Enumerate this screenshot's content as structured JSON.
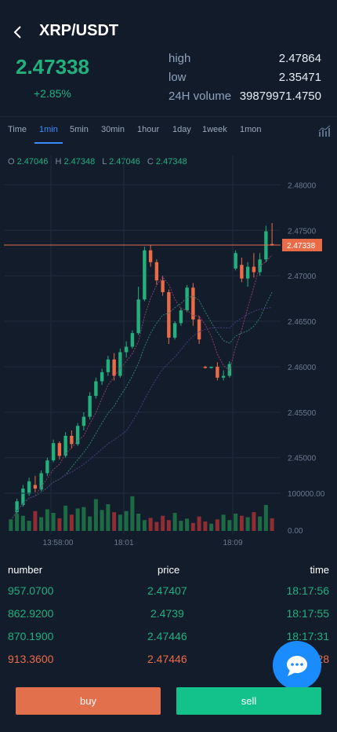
{
  "header": {
    "pair": "XRP/USDT",
    "price": "2.47338",
    "change": "+2.85%",
    "stats": [
      {
        "label": "high",
        "value": "2.47864"
      },
      {
        "label": "low",
        "value": "2.35471"
      },
      {
        "label": "24H volume",
        "value": "39879971.4750"
      }
    ]
  },
  "tabs": [
    "Time",
    "1min",
    "5min",
    "30min",
    "1hour",
    "1day",
    "1week",
    "1mon"
  ],
  "active_tab": "1min",
  "ohlc": {
    "o_label": "O",
    "o": "2.47046",
    "h_label": "H",
    "h": "2.47348",
    "l_label": "L",
    "l": "2.47046",
    "c_label": "C",
    "c": "2.47348"
  },
  "chart_data": {
    "type": "candlestick",
    "y_ticks": [
      "2.48000",
      "2.47500",
      "2.47000",
      "2.46500",
      "2.46000",
      "2.45500",
      "2.45000"
    ],
    "ylim": [
      2.4435,
      2.4815
    ],
    "current_price_label": "2.47338",
    "current_price": 2.47338,
    "volume_ticks": [
      "100000.00",
      "0.00"
    ],
    "x_labels": [
      "13:58:00",
      "18:01",
      "18:09"
    ],
    "candles": [
      [
        2.443,
        2.4432,
        2.4428,
        2.4431
      ],
      [
        2.444,
        2.4455,
        2.4436,
        2.4452
      ],
      [
        2.4448,
        2.447,
        2.4446,
        2.4466
      ],
      [
        2.446,
        2.4478,
        2.4458,
        2.4474
      ],
      [
        2.447,
        2.448,
        2.4462,
        2.4466
      ],
      [
        2.4465,
        2.4486,
        2.4463,
        2.4483
      ],
      [
        2.4483,
        2.45,
        2.448,
        2.4497
      ],
      [
        2.4497,
        2.452,
        2.4495,
        2.4516
      ],
      [
        2.4516,
        2.4518,
        2.4498,
        2.4502
      ],
      [
        2.4502,
        2.4528,
        2.45,
        2.4524
      ],
      [
        2.4524,
        2.453,
        2.451,
        2.4515
      ],
      [
        2.4515,
        2.4538,
        2.4513,
        2.4535
      ],
      [
        2.4535,
        2.455,
        2.453,
        2.4545
      ],
      [
        2.4545,
        2.4572,
        2.4542,
        2.4568
      ],
      [
        2.4568,
        2.4588,
        2.4565,
        2.4584
      ],
      [
        2.4584,
        2.4598,
        2.458,
        2.4594
      ],
      [
        2.4594,
        2.4612,
        2.459,
        2.4608
      ],
      [
        2.4608,
        2.4615,
        2.4585,
        2.459
      ],
      [
        2.459,
        2.462,
        2.4588,
        2.4616
      ],
      [
        2.4616,
        2.4628,
        2.461,
        2.4622
      ],
      [
        2.4622,
        2.464,
        2.462,
        2.4637
      ],
      [
        2.4637,
        2.4688,
        2.4635,
        2.4674
      ],
      [
        2.4674,
        2.4732,
        2.4672,
        2.4728
      ],
      [
        2.4728,
        2.4734,
        2.471,
        2.4715
      ],
      [
        2.4715,
        2.4718,
        2.469,
        2.4695
      ],
      [
        2.4695,
        2.47,
        2.4678,
        2.4682
      ],
      [
        2.4682,
        2.4685,
        2.4625,
        2.4632
      ],
      [
        2.4632,
        2.465,
        2.463,
        2.4648
      ],
      [
        2.4648,
        2.4665,
        2.4645,
        2.4662
      ],
      [
        2.4662,
        2.469,
        2.466,
        2.4687
      ],
      [
        2.4687,
        2.4692,
        2.4645,
        2.4652
      ],
      [
        2.4652,
        2.4656,
        2.4625,
        2.463
      ],
      [
        2.46,
        2.4601,
        2.4598,
        2.4599
      ],
      [
        2.4599,
        2.46,
        2.4598,
        2.46
      ],
      [
        2.46,
        2.4605,
        2.4585,
        2.4588
      ],
      [
        2.4588,
        2.4596,
        2.4585,
        2.459
      ],
      [
        2.459,
        2.4606,
        2.4588,
        2.4603
      ],
      [
        2.4708,
        2.4728,
        2.4706,
        2.4725
      ],
      [
        2.4712,
        2.472,
        2.4693,
        2.4697
      ],
      [
        2.4697,
        2.4715,
        2.4688,
        2.471
      ],
      [
        2.471,
        2.4725,
        2.4698,
        2.4704
      ],
      [
        2.4704,
        2.4725,
        2.47,
        2.4718
      ],
      [
        2.4718,
        2.4755,
        2.4715,
        2.4749
      ],
      [
        2.4735,
        2.4758,
        2.4733,
        2.4734
      ]
    ],
    "volumes": [
      0.32,
      0.48,
      0.42,
      0.28,
      0.55,
      0.38,
      0.6,
      0.5,
      0.35,
      0.7,
      0.45,
      0.62,
      0.66,
      0.4,
      0.88,
      0.58,
      0.74,
      0.52,
      0.45,
      0.55,
      0.96,
      0.48,
      0.3,
      0.36,
      0.25,
      0.42,
      0.3,
      0.5,
      0.28,
      0.34,
      0.22,
      0.4,
      0.26,
      0.2,
      0.32,
      0.45,
      0.3,
      0.48,
      0.42,
      0.38,
      0.52,
      0.4,
      0.72,
      0.35
    ]
  },
  "trades": {
    "headers": {
      "number": "number",
      "price": "price",
      "time": "time"
    },
    "rows": [
      {
        "number": "957.0700",
        "price": "2.47407",
        "time": "18:17:56",
        "side": "buy"
      },
      {
        "number": "862.9200",
        "price": "2.4739",
        "time": "18:17:55",
        "side": "buy"
      },
      {
        "number": "870.1900",
        "price": "2.47446",
        "time": "18:17:31",
        "side": "buy"
      },
      {
        "number": "913.3600",
        "price": "2.47446",
        "time": "18:17:28",
        "side": "sell"
      }
    ]
  },
  "actions": {
    "buy": "buy",
    "sell": "sell"
  },
  "colors": {
    "up": "#22b07d",
    "down": "#ea6c47",
    "accent": "#3b8bff",
    "price_line": "#ea6c47"
  }
}
